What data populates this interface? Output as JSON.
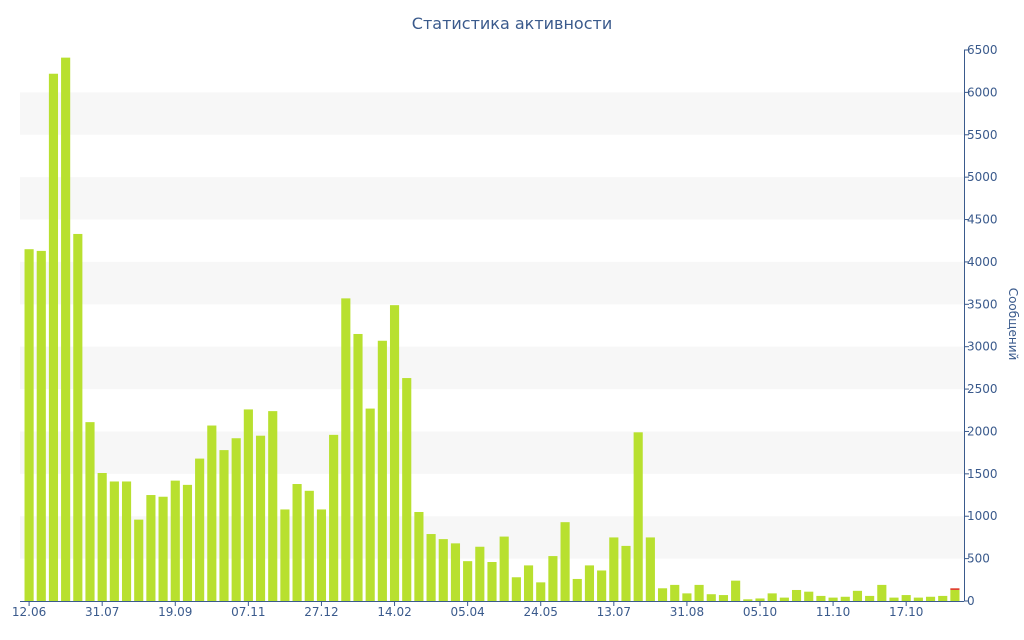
{
  "chart_data": {
    "type": "bar",
    "title": "Статистика активности",
    "xlabel": "",
    "ylabel": "Сообщений",
    "ylim": [
      0,
      6500
    ],
    "y_ticks": [
      0,
      500,
      1000,
      1500,
      2000,
      2500,
      3000,
      3500,
      4000,
      4500,
      5000,
      5500,
      6000,
      6500
    ],
    "y_axis_position": "right",
    "grid": "alternating horizontal bands",
    "x_tick_labels": [
      {
        "index": 0,
        "label": "12.06"
      },
      {
        "index": 6,
        "label": "31.07"
      },
      {
        "index": 12,
        "label": "19.09"
      },
      {
        "index": 18,
        "label": "07.11"
      },
      {
        "index": 24,
        "label": "27.12"
      },
      {
        "index": 30,
        "label": "14.02"
      },
      {
        "index": 36,
        "label": "05.04"
      },
      {
        "index": 42,
        "label": "24.05"
      },
      {
        "index": 48,
        "label": "13.07"
      },
      {
        "index": 54,
        "label": "31.08"
      },
      {
        "index": 60,
        "label": "05.10"
      },
      {
        "index": 66,
        "label": "11.10"
      },
      {
        "index": 72,
        "label": "17.10"
      }
    ],
    "colors": {
      "bar": "#b8e02f",
      "last_bar_top": "#e0402f",
      "band": "#f7f7f7",
      "axis": "#3a5a8c"
    },
    "values": [
      4150,
      4130,
      6220,
      6410,
      4330,
      2110,
      1510,
      1410,
      1410,
      960,
      1250,
      1230,
      1420,
      1370,
      1680,
      2070,
      1780,
      1920,
      2260,
      1950,
      2240,
      1080,
      1380,
      1300,
      1080,
      1960,
      3570,
      3150,
      2270,
      3070,
      3490,
      2630,
      1050,
      790,
      730,
      680,
      470,
      640,
      460,
      760,
      280,
      420,
      220,
      530,
      930,
      260,
      420,
      360,
      750,
      650,
      1990,
      750,
      150,
      190,
      90,
      190,
      80,
      70,
      240,
      20,
      30,
      90,
      40,
      130,
      110,
      60,
      40,
      50,
      120,
      60,
      190,
      40,
      70,
      40,
      50,
      60,
      150
    ],
    "last_bar_highlight": 20
  }
}
